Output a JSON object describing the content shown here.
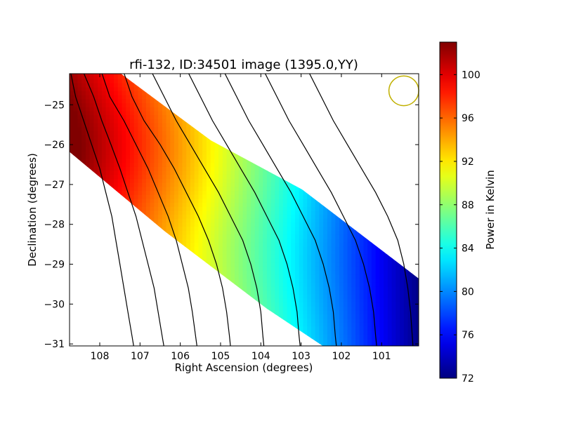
{
  "chart_data": {
    "type": "heatmap",
    "title": "rfi-132, ID:34501 image (1395.0,YY)",
    "xlabel": "Right Ascension (degrees)",
    "ylabel": "Declination (degrees)",
    "colorbar_label": "Power in Kelvin",
    "colormap": "jet",
    "x_inverted": true,
    "xlim": [
      108.75,
      100.08
    ],
    "ylim": [
      -31.05,
      -24.22
    ],
    "x_ticks": [
      108,
      107,
      106,
      105,
      104,
      103,
      102,
      101
    ],
    "y_ticks": [
      -25,
      -26,
      -27,
      -28,
      -29,
      -30,
      -31
    ],
    "x_tick_labels": [
      "108",
      "107",
      "106",
      "105",
      "104",
      "103",
      "102",
      "101"
    ],
    "y_tick_labels": [
      "−25",
      "−26",
      "−27",
      "−28",
      "−29",
      "−30",
      "−31"
    ],
    "color_range": [
      72,
      103
    ],
    "colorbar_ticks": [
      72,
      76,
      80,
      84,
      88,
      92,
      96,
      100
    ],
    "colorbar_tick_labels": [
      "72",
      "76",
      "80",
      "84",
      "88",
      "92",
      "96",
      "100"
    ],
    "contours": true,
    "beam_marker": {
      "ra": 100.45,
      "dec": -24.65,
      "radius_deg": 0.37,
      "color": "#c0b000"
    },
    "peak": {
      "ra": 108.7,
      "dec": -25.0,
      "value": 102.5
    },
    "minimum": {
      "ra": 100.1,
      "dec": -30.0,
      "value": 72.0
    }
  }
}
